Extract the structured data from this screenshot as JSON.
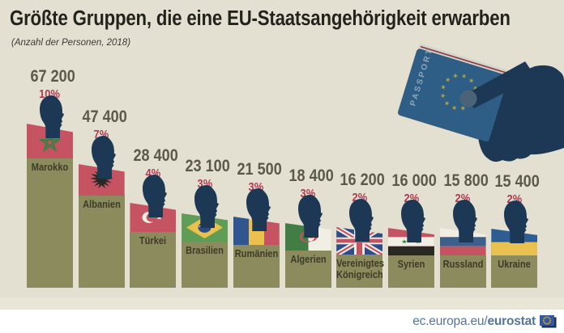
{
  "header": {
    "title": "Größte Gruppen, die eine EU-Staatsangehörigkeit erwarben",
    "subtitle": "(Anzahl der Personen, 2018)"
  },
  "chart_data": {
    "type": "bar",
    "title": "Größte Gruppen, die eine EU-Staatsangehörigkeit erwarben",
    "subtitle": "(Anzahl der Personen, 2018)",
    "unit": "Anzahl der Personen",
    "year": "2018",
    "categories": [
      "Marokko",
      "Albanien",
      "Türkei",
      "Brasilien",
      "Rumänien",
      "Algerien",
      "Vereinigtes Königreich",
      "Syrien",
      "Russland",
      "Ukraine"
    ],
    "values": [
      67200,
      47400,
      28400,
      23100,
      21500,
      18400,
      16200,
      16000,
      15800,
      15400
    ],
    "value_labels": [
      "67 200",
      "47 400",
      "28 400",
      "23 100",
      "21 500",
      "18 400",
      "16 200",
      "16 000",
      "15 800",
      "15 400"
    ],
    "percent_labels": [
      "10%",
      "7%",
      "4%",
      "3%",
      "3%",
      "3%",
      "2%",
      "2%",
      "2%",
      "2%"
    ],
    "flag_codes": [
      "ma",
      "al",
      "tr",
      "br",
      "ro",
      "dz",
      "gb",
      "sy",
      "ru",
      "ua"
    ],
    "legend_position": "none",
    "grid": false
  },
  "passport": {
    "label": "PASSPORT"
  },
  "footer": {
    "url_prefix": "ec.europa.eu/",
    "url_bold": "eurostat"
  },
  "colors": {
    "background": "#e4e0d1",
    "footer_bg": "#ffffff",
    "title": "#23231e",
    "subtitle": "#3b3a33",
    "value_text": "#5a594a",
    "percent_text": "#b03a52",
    "bar": "#8b8b5e",
    "bar_label": "#3d3c28",
    "silhouette": "#1c3854",
    "passport_cover": "#2e5e85",
    "passport_pages": "#d5d5cc",
    "passport_redline": "#8c3b47",
    "passport_star": "#ae9f49",
    "passport_text": "#8fa5b6",
    "thumb_tip": "#4c6377",
    "footer_text": "#53749c",
    "eu_icon_blue": "#35589e",
    "eu_icon_dark": "#1b2f4e",
    "flags": {
      "red": "#c65362",
      "white": "#f1eee4",
      "black": "#2a2823",
      "green": "#417d44",
      "yellow": "#eac14e",
      "blue": "#31558e",
      "brazil_green": "#5f9c55",
      "brazil_blue": "#2c4b80",
      "russia_blue": "#3c5f8c",
      "ukraine_blue": "#2e5d93",
      "uk_blue": "#2e4d86"
    }
  }
}
